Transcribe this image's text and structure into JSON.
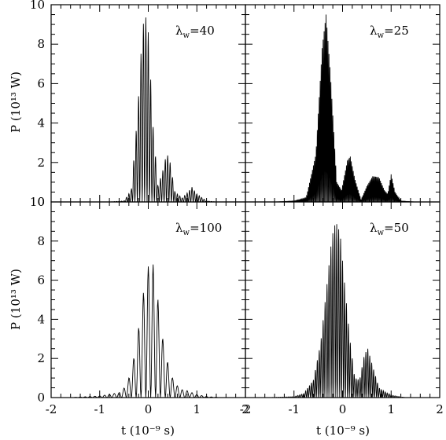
{
  "chart_data": {
    "type": "line",
    "layout": "2x2 grid of panels sharing axes",
    "xlabel": "t (10⁻⁹ s)",
    "ylabel": "P (10¹³ W)",
    "xlim": [
      -2,
      2
    ],
    "ylim": [
      0,
      10
    ],
    "xticks": [
      -2,
      -1,
      0,
      1,
      2
    ],
    "yticks": [
      0,
      2,
      4,
      6,
      8,
      10
    ],
    "line_color": "#000000",
    "panels": [
      {
        "label": "λw=40",
        "label_parts": {
          "lambda": "λ",
          "sub": "w",
          "rest": "=40"
        },
        "oscillation_period": 0.05,
        "envelope": [
          [
            -1.0,
            0
          ],
          [
            -0.8,
            0
          ],
          [
            -0.5,
            0.05
          ],
          [
            -0.35,
            0.6
          ],
          [
            -0.22,
            4.5
          ],
          [
            -0.12,
            8.8
          ],
          [
            -0.06,
            9.5
          ],
          [
            0.0,
            8.6
          ],
          [
            0.1,
            3.8
          ],
          [
            0.2,
            0.8
          ],
          [
            0.3,
            1.6
          ],
          [
            0.38,
            2.5
          ],
          [
            0.45,
            2.0
          ],
          [
            0.55,
            0.5
          ],
          [
            0.7,
            0.2
          ],
          [
            0.82,
            0.5
          ],
          [
            0.9,
            0.75
          ],
          [
            1.0,
            0.4
          ],
          [
            1.2,
            0.05
          ],
          [
            1.4,
            0
          ]
        ]
      },
      {
        "label": "λw=25",
        "label_parts": {
          "lambda": "λ",
          "sub": "w",
          "rest": "=25"
        },
        "oscillation_period": 0.02,
        "envelope": [
          [
            -1.4,
            0
          ],
          [
            -1.0,
            0.05
          ],
          [
            -0.75,
            0.2
          ],
          [
            -0.55,
            2.4
          ],
          [
            -0.42,
            7.8
          ],
          [
            -0.34,
            9.5
          ],
          [
            -0.25,
            6.5
          ],
          [
            -0.12,
            1.0
          ],
          [
            -0.02,
            0.6
          ],
          [
            0.1,
            2.1
          ],
          [
            0.16,
            2.3
          ],
          [
            0.25,
            1.2
          ],
          [
            0.38,
            0.1
          ],
          [
            0.5,
            0.8
          ],
          [
            0.62,
            1.3
          ],
          [
            0.75,
            1.25
          ],
          [
            0.86,
            0.6
          ],
          [
            0.93,
            0.4
          ],
          [
            1.0,
            1.4
          ],
          [
            1.08,
            0.5
          ],
          [
            1.2,
            0.05
          ],
          [
            1.5,
            0
          ]
        ]
      },
      {
        "label": "λw=100",
        "label_parts": {
          "lambda": "λ",
          "sub": "w",
          "rest": "=100"
        },
        "oscillation_period": 0.1,
        "envelope": [
          [
            -1.6,
            0
          ],
          [
            -1.0,
            0.08
          ],
          [
            -0.6,
            0.25
          ],
          [
            -0.45,
            0.6
          ],
          [
            -0.35,
            1.4
          ],
          [
            -0.25,
            2.6
          ],
          [
            -0.15,
            4.5
          ],
          [
            -0.05,
            6.2
          ],
          [
            0.03,
            7.0
          ],
          [
            0.1,
            6.8
          ],
          [
            0.2,
            5.0
          ],
          [
            0.3,
            3.0
          ],
          [
            0.4,
            1.8
          ],
          [
            0.5,
            1.0
          ],
          [
            0.6,
            0.6
          ],
          [
            0.7,
            0.4
          ],
          [
            0.8,
            0.35
          ],
          [
            0.9,
            0.25
          ],
          [
            1.0,
            0.15
          ],
          [
            1.2,
            0.05
          ],
          [
            1.5,
            0
          ]
        ]
      },
      {
        "label": "λw=50",
        "label_parts": {
          "lambda": "λ",
          "sub": "w",
          "rest": "=50"
        },
        "oscillation_period": 0.04,
        "envelope": [
          [
            -1.5,
            0
          ],
          [
            -1.0,
            0.05
          ],
          [
            -0.8,
            0.2
          ],
          [
            -0.6,
            0.9
          ],
          [
            -0.45,
            2.8
          ],
          [
            -0.32,
            5.8
          ],
          [
            -0.22,
            8.2
          ],
          [
            -0.14,
            9.0
          ],
          [
            -0.05,
            8.4
          ],
          [
            0.05,
            5.6
          ],
          [
            0.15,
            3.0
          ],
          [
            0.25,
            1.0
          ],
          [
            0.35,
            0.9
          ],
          [
            0.45,
            2.2
          ],
          [
            0.52,
            2.5
          ],
          [
            0.62,
            1.6
          ],
          [
            0.75,
            0.5
          ],
          [
            0.9,
            0.25
          ],
          [
            1.05,
            0.1
          ],
          [
            1.3,
            0
          ]
        ]
      }
    ]
  }
}
